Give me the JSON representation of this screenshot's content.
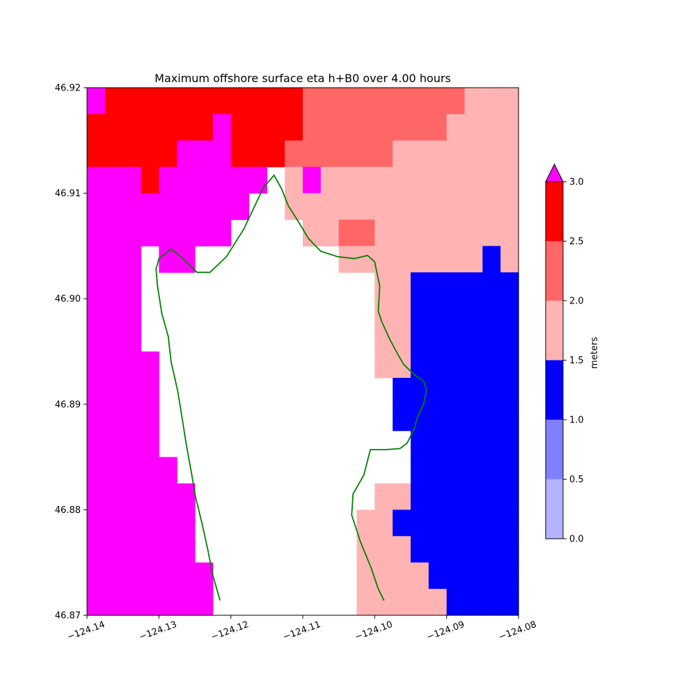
{
  "chart_data": {
    "type": "heatmap",
    "title": "Maximum offshore surface eta h+B0 over 4.00 hours",
    "xlabel": "",
    "ylabel": "",
    "xlim": [
      -124.14,
      -124.08
    ],
    "ylim": [
      46.87,
      46.92
    ],
    "x_ticks": [
      -124.14,
      -124.13,
      -124.12,
      -124.11,
      -124.1,
      -124.09,
      -124.08
    ],
    "x_tick_labels": [
      "−124.14",
      "−124.13",
      "−124.12",
      "−124.11",
      "−124.10",
      "−124.09",
      "−124.08"
    ],
    "y_ticks": [
      46.87,
      46.88,
      46.89,
      46.9,
      46.91,
      46.92
    ],
    "y_tick_labels": [
      "46.87",
      "46.88",
      "46.89",
      "46.90",
      "46.91",
      "46.92"
    ],
    "grid": [
      "MRRRRRRRRRRRrrrrrrrrrppp",
      "RRRRRRRMRRRRrrrrrrrrpppp",
      "RRRRRMMMRRRrrrrrrppppppp",
      "MMMRMMMMMM.pMppppppppppp",
      "MMMMMMMMM..ppppppppppppp",
      "MMMMMMMM....pprrpppppppp",
      "MMM.MM........ppppppppBp",
      "MMM.............ppBBBBBB",
      "MMM.............ppBBBBBB",
      "MMM.............ppBBBBBB",
      "MMMM............ppBBBBBB",
      "MMMM.............BBBBBBB",
      "MMMM.............BBBBBBB",
      "MMMM..............BBBBBB",
      "MMMMM.............BBBBBB",
      "MMMMMM..........ppBBBBBB",
      "MMMMMM.........ppBBBBBBB",
      "MMMMMM.........pppBBBBBB",
      "MMMMMMM........ppppBBBBB",
      "MMMMMMM........pppppBBBB"
    ],
    "colorbar": {
      "label": "meters",
      "levels": [
        0.0,
        0.5,
        1.0,
        1.5,
        2.0,
        2.5,
        3.0
      ],
      "tick_labels": [
        "0.0",
        "0.5",
        "1.0",
        "1.5",
        "2.0",
        "2.5",
        "3.0"
      ],
      "colors": [
        "#b3b3ff",
        "#8080ff",
        "#0000ff",
        "#ffb3b3",
        "#ff6666",
        "#ff0000"
      ],
      "extend_max_color": "#ff00ff",
      "extend": "max"
    },
    "grid_cols": 24,
    "grid_rows": 20,
    "grid_legend": {
      ".": "land / no data",
      "M": "> 3.0",
      "R": "2.5 - 3.0",
      "r": "2.0 - 2.5",
      "p": "1.5 - 2.0",
      "B": "1.0 - 1.5"
    },
    "coastline": [
      [
        -124.1215,
        46.8714
      ],
      [
        -124.1225,
        46.8738
      ],
      [
        -124.1232,
        46.8762
      ],
      [
        -124.124,
        46.8787
      ],
      [
        -124.1249,
        46.8812
      ],
      [
        -124.1255,
        46.8836
      ],
      [
        -124.1262,
        46.8862
      ],
      [
        -124.1268,
        46.8888
      ],
      [
        -124.1274,
        46.8913
      ],
      [
        -124.1283,
        46.894
      ],
      [
        -124.1287,
        46.8964
      ],
      [
        -124.1296,
        46.8986
      ],
      [
        -124.1302,
        46.9012
      ],
      [
        -124.1304,
        46.9028
      ],
      [
        -124.13,
        46.9038
      ],
      [
        -124.1283,
        46.9047
      ],
      [
        -124.1268,
        46.9039
      ],
      [
        -124.1247,
        46.9025
      ],
      [
        -124.1229,
        46.9025
      ],
      [
        -124.1206,
        46.904
      ],
      [
        -124.1182,
        46.9066
      ],
      [
        -124.1168,
        46.9086
      ],
      [
        -124.1155,
        46.9105
      ],
      [
        -124.114,
        46.9117
      ],
      [
        -124.113,
        46.9105
      ],
      [
        -124.112,
        46.9088
      ],
      [
        -124.1107,
        46.9074
      ],
      [
        -124.1092,
        46.9057
      ],
      [
        -124.1075,
        46.9045
      ],
      [
        -124.1052,
        46.904
      ],
      [
        -124.1028,
        46.9038
      ],
      [
        -124.101,
        46.9041
      ],
      [
        -124.1,
        46.9035
      ],
      [
        -124.0993,
        46.9012
      ],
      [
        -124.0995,
        46.8988
      ],
      [
        -124.099,
        46.8978
      ],
      [
        -124.098,
        46.8963
      ],
      [
        -124.097,
        46.895
      ],
      [
        -124.096,
        46.8938
      ],
      [
        -124.0945,
        46.8928
      ],
      [
        -124.0932,
        46.8922
      ],
      [
        -124.0928,
        46.8914
      ],
      [
        -124.0932,
        46.89
      ],
      [
        -124.094,
        46.8889
      ],
      [
        -124.0945,
        46.8877
      ],
      [
        -124.0955,
        46.8863
      ],
      [
        -124.0965,
        46.8858
      ],
      [
        -124.0985,
        46.8857
      ],
      [
        -124.1006,
        46.8857
      ],
      [
        -124.1015,
        46.8833
      ],
      [
        -124.103,
        46.8815
      ],
      [
        -124.1032,
        46.8795
      ],
      [
        -124.102,
        46.877
      ],
      [
        -124.1005,
        46.8745
      ],
      [
        -124.0995,
        46.8725
      ],
      [
        -124.0987,
        46.8714
      ]
    ],
    "coastline_color": "#008000"
  }
}
